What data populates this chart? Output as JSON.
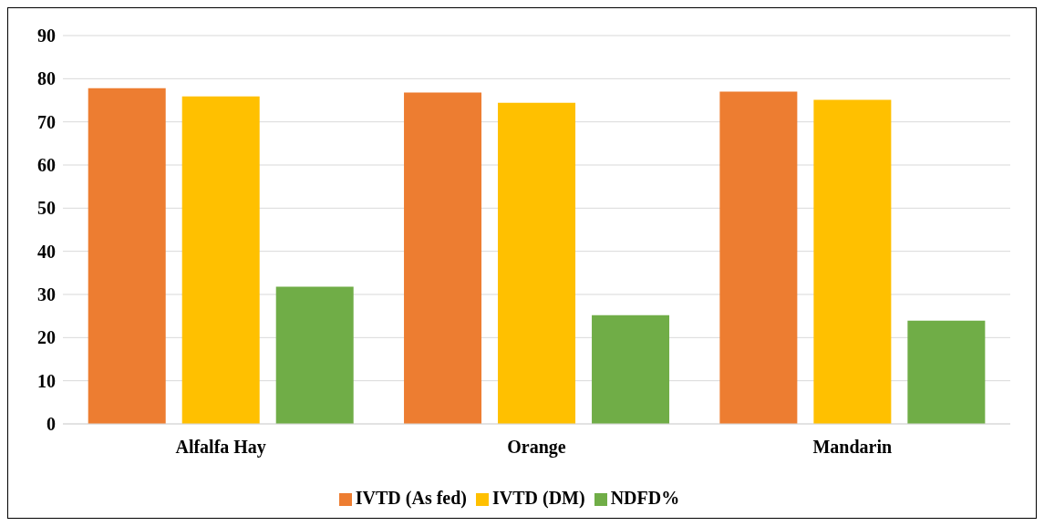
{
  "chart_data": {
    "type": "bar",
    "categories": [
      "Alfalfa Hay",
      "Orange",
      "Mandarin"
    ],
    "series": [
      {
        "name": "IVTD (As fed)",
        "color": "#ed7d31",
        "values": [
          77.8,
          76.8,
          77.0
        ]
      },
      {
        "name": "IVTD (DM)",
        "color": "#ffc000",
        "values": [
          75.9,
          74.4,
          75.1
        ]
      },
      {
        "name": "NDFD%",
        "color": "#70ad47",
        "values": [
          31.8,
          25.2,
          23.9
        ]
      }
    ],
    "ylim": [
      0,
      90
    ],
    "yticks": [
      0,
      10,
      20,
      30,
      40,
      50,
      60,
      70,
      80,
      90
    ],
    "grid": "y",
    "legend": "bottom"
  }
}
